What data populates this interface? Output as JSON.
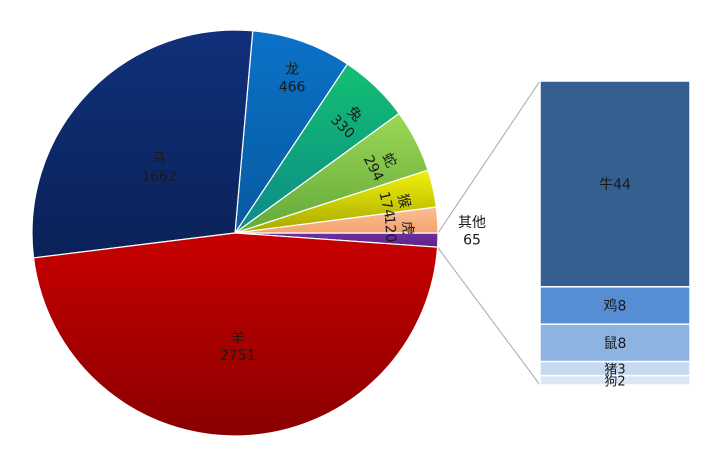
{
  "chart_data": {
    "type": "pie",
    "subtype": "bar-of-pie",
    "title": "",
    "slices": [
      {
        "label": "羊",
        "value": 2751,
        "color": "#c80000",
        "color_dark": "#8a0000"
      },
      {
        "label": "马",
        "value": 1662,
        "color": "#10307a",
        "color_dark": "#0a2258"
      },
      {
        "label": "龙",
        "value": 466,
        "color": "#0a72c8",
        "color_dark": "#075aa0"
      },
      {
        "label": "兔",
        "value": 330,
        "color": "#12c070",
        "color_dark": "#0d8a8a"
      },
      {
        "label": "蛇",
        "value": 294,
        "color": "#9bd855",
        "color_dark": "#63a83a"
      },
      {
        "label": "猴",
        "value": 174,
        "color": "#f2f20a",
        "color_dark": "#a8a800"
      },
      {
        "label": "虎",
        "value": 120,
        "color": "#fbbf96",
        "color_dark": "#f4a26e"
      },
      {
        "label": "其他",
        "value": 65,
        "color": "#7030a0",
        "color_dark": "#5a2385"
      }
    ],
    "bar_of_other": [
      {
        "label": "牛",
        "value": 44,
        "color": "#365f91"
      },
      {
        "label": "鸡",
        "value": 8,
        "color": "#558ed5"
      },
      {
        "label": "鼠",
        "value": 8,
        "color": "#8db3e2"
      },
      {
        "label": "猪",
        "value": 3,
        "color": "#c6d9f1"
      },
      {
        "label": "狗",
        "value": 2,
        "color": "#dce6f2"
      }
    ],
    "data_labels": "category and value",
    "legend": "none"
  }
}
